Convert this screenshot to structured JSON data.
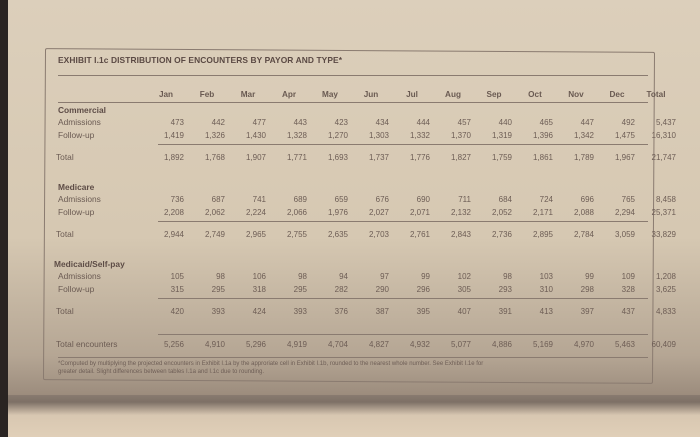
{
  "exhibit": {
    "title": "EXHIBIT I.1c  DISTRIBUTION OF ENCOUNTERS BY PAYOR AND TYPE*",
    "columns": [
      "Jan",
      "Feb",
      "Mar",
      "Apr",
      "May",
      "Jun",
      "Jul",
      "Aug",
      "Sep",
      "Oct",
      "Nov",
      "Dec",
      "Total"
    ],
    "sections": [
      {
        "name": "Commercial",
        "rows": [
          {
            "label": "Admissions",
            "values": [
              "473",
              "442",
              "477",
              "443",
              "423",
              "434",
              "444",
              "457",
              "440",
              "465",
              "447",
              "492",
              "5,437"
            ]
          },
          {
            "label": "Follow-up",
            "values": [
              "1,419",
              "1,326",
              "1,430",
              "1,328",
              "1,270",
              "1,303",
              "1,332",
              "1,370",
              "1,319",
              "1,396",
              "1,342",
              "1,475",
              "16,310"
            ]
          }
        ],
        "total": {
          "label": "Total",
          "values": [
            "1,892",
            "1,768",
            "1,907",
            "1,771",
            "1,693",
            "1,737",
            "1,776",
            "1,827",
            "1,759",
            "1,861",
            "1,789",
            "1,967",
            "21,747"
          ]
        }
      },
      {
        "name": "Medicare",
        "rows": [
          {
            "label": "Admissions",
            "values": [
              "736",
              "687",
              "741",
              "689",
              "659",
              "676",
              "690",
              "711",
              "684",
              "724",
              "696",
              "765",
              "8,458"
            ]
          },
          {
            "label": "Follow-up",
            "values": [
              "2,208",
              "2,062",
              "2,224",
              "2,066",
              "1,976",
              "2,027",
              "2,071",
              "2,132",
              "2,052",
              "2,171",
              "2,088",
              "2,294",
              "25,371"
            ]
          }
        ],
        "total": {
          "label": "Total",
          "values": [
            "2,944",
            "2,749",
            "2,965",
            "2,755",
            "2,635",
            "2,703",
            "2,761",
            "2,843",
            "2,736",
            "2,895",
            "2,784",
            "3,059",
            "33,829"
          ]
        }
      },
      {
        "name": "Medicaid/Self-pay",
        "rows": [
          {
            "label": "Admissions",
            "values": [
              "105",
              "98",
              "106",
              "98",
              "94",
              "97",
              "99",
              "102",
              "98",
              "103",
              "99",
              "109",
              "1,208"
            ]
          },
          {
            "label": "Follow-up",
            "values": [
              "315",
              "295",
              "318",
              "295",
              "282",
              "290",
              "296",
              "305",
              "293",
              "310",
              "298",
              "328",
              "3,625"
            ]
          }
        ],
        "total": {
          "label": "Total",
          "values": [
            "420",
            "393",
            "424",
            "393",
            "376",
            "387",
            "395",
            "407",
            "391",
            "413",
            "397",
            "437",
            "4,833"
          ]
        }
      }
    ],
    "grand_total": {
      "label": "Total encounters",
      "values": [
        "5,256",
        "4,910",
        "5,296",
        "4,919",
        "4,704",
        "4,827",
        "4,932",
        "5,077",
        "4,886",
        "5,169",
        "4,970",
        "5,463",
        "60,409"
      ]
    },
    "footnote_line1": "*Computed by multiplying the projected encounters in Exhibit I.1a by the approriate cell in Exhibit I.1b, rounded to the nearest whole number. See Exhibit I.1e for",
    "footnote_line2": "greater detail. Slight differences between tables I.1a and I.1c due to rounding."
  }
}
